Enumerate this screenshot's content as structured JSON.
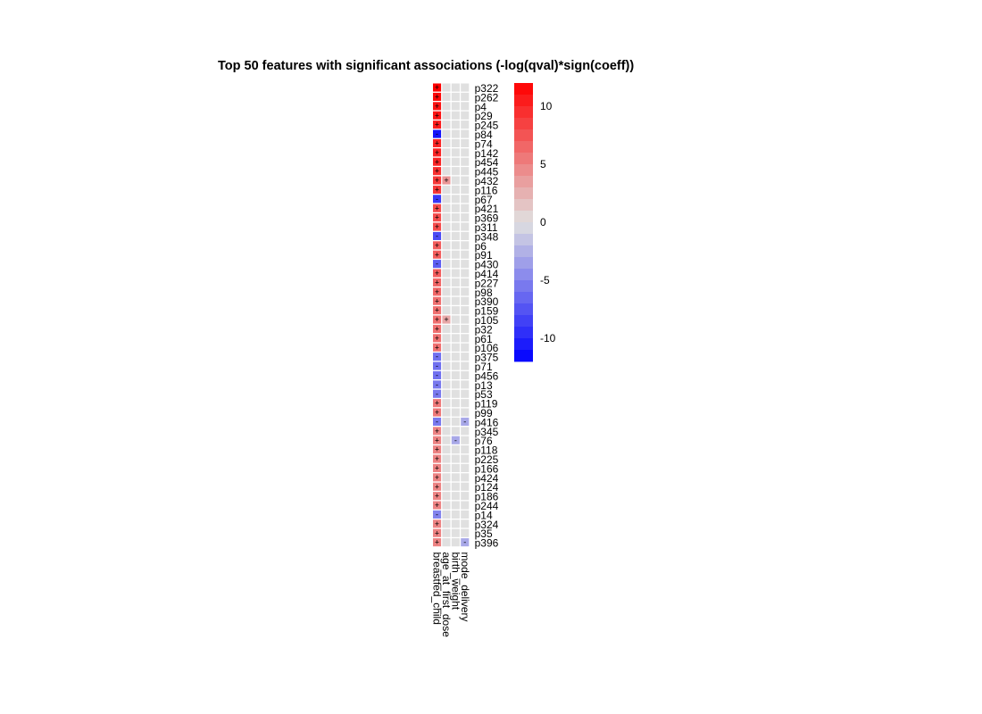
{
  "chart_data": {
    "type": "heatmap",
    "title": "Top 50 features with significant associations (-log(qval)*sign(coeff))",
    "columns": [
      "breastfed_child",
      "age_at_first_dose",
      "birth_weight",
      "mode_delivery"
    ],
    "rows": [
      "p322",
      "p262",
      "p4",
      "p29",
      "p245",
      "p84",
      "p74",
      "p142",
      "p454",
      "p445",
      "p432",
      "p116",
      "p67",
      "p421",
      "p369",
      "p311",
      "p348",
      "p6",
      "p91",
      "p430",
      "p414",
      "p227",
      "p98",
      "p390",
      "p159",
      "p105",
      "p32",
      "p61",
      "p106",
      "p375",
      "p71",
      "p456",
      "p13",
      "p53",
      "p119",
      "p99",
      "p416",
      "p345",
      "p76",
      "p118",
      "p225",
      "p166",
      "p424",
      "p124",
      "p186",
      "p244",
      "p14",
      "p324",
      "p35",
      "p396"
    ],
    "values": [
      [
        12,
        0,
        0,
        0
      ],
      [
        11.5,
        0,
        0,
        0
      ],
      [
        11,
        0,
        0,
        0
      ],
      [
        11,
        0,
        0,
        0
      ],
      [
        10.5,
        0,
        0,
        0
      ],
      [
        -11,
        0,
        0,
        0
      ],
      [
        10,
        0,
        0,
        0
      ],
      [
        10,
        0,
        0,
        0
      ],
      [
        10,
        0,
        0,
        0
      ],
      [
        9.5,
        0,
        0,
        0
      ],
      [
        9,
        4,
        0,
        0
      ],
      [
        9,
        0,
        0,
        0
      ],
      [
        -9,
        0,
        0,
        0
      ],
      [
        8,
        0,
        0,
        0
      ],
      [
        8,
        0,
        0,
        0
      ],
      [
        8,
        0,
        0,
        0
      ],
      [
        -8,
        0,
        0,
        0
      ],
      [
        7,
        0,
        0,
        0
      ],
      [
        7,
        0,
        0,
        0
      ],
      [
        -7,
        0,
        0,
        0
      ],
      [
        7,
        0,
        0,
        0
      ],
      [
        6.5,
        0,
        0,
        0
      ],
      [
        6.5,
        0,
        0,
        0
      ],
      [
        6,
        0,
        0,
        0
      ],
      [
        6,
        0,
        0,
        0
      ],
      [
        6,
        3,
        0,
        0
      ],
      [
        6,
        0,
        0,
        0
      ],
      [
        6,
        0,
        0,
        0
      ],
      [
        6,
        0,
        0,
        0
      ],
      [
        -6,
        0,
        0,
        0
      ],
      [
        -6,
        0,
        0,
        0
      ],
      [
        -6,
        0,
        0,
        0
      ],
      [
        -5.5,
        0,
        0,
        0
      ],
      [
        -5.5,
        0,
        0,
        0
      ],
      [
        5.5,
        0,
        0,
        0
      ],
      [
        5.5,
        0,
        0,
        0
      ],
      [
        -5.5,
        0,
        0,
        -3
      ],
      [
        5,
        0,
        0,
        0
      ],
      [
        5,
        0,
        -3,
        0
      ],
      [
        5,
        0,
        0,
        0
      ],
      [
        5,
        0,
        0,
        0
      ],
      [
        5,
        0,
        0,
        0
      ],
      [
        5,
        0,
        0,
        0
      ],
      [
        5,
        0,
        0,
        0
      ],
      [
        5,
        0,
        0,
        0
      ],
      [
        5,
        0,
        0,
        0
      ],
      [
        -5,
        0,
        0,
        0
      ],
      [
        5,
        0,
        0,
        0
      ],
      [
        5,
        0,
        0,
        0
      ],
      [
        5,
        0,
        0,
        -3
      ]
    ],
    "significance_marks": [
      [
        "+",
        "",
        "",
        ""
      ],
      [
        "+",
        "",
        "",
        ""
      ],
      [
        "+",
        "",
        "",
        ""
      ],
      [
        "+",
        "",
        "",
        ""
      ],
      [
        "+",
        "",
        "",
        ""
      ],
      [
        "-",
        "",
        "",
        ""
      ],
      [
        "+",
        "",
        "",
        ""
      ],
      [
        "+",
        "",
        "",
        ""
      ],
      [
        "+",
        "",
        "",
        ""
      ],
      [
        "+",
        "",
        "",
        ""
      ],
      [
        "+",
        "+",
        "",
        ""
      ],
      [
        "+",
        "",
        "",
        ""
      ],
      [
        "-",
        "",
        "",
        ""
      ],
      [
        "+",
        "",
        "",
        ""
      ],
      [
        "+",
        "",
        "",
        ""
      ],
      [
        "+",
        "",
        "",
        ""
      ],
      [
        "-",
        "",
        "",
        ""
      ],
      [
        "+",
        "",
        "",
        ""
      ],
      [
        "+",
        "",
        "",
        ""
      ],
      [
        "-",
        "",
        "",
        ""
      ],
      [
        "+",
        "",
        "",
        ""
      ],
      [
        "+",
        "",
        "",
        ""
      ],
      [
        "+",
        "",
        "",
        ""
      ],
      [
        "+",
        "",
        "",
        ""
      ],
      [
        "+",
        "",
        "",
        ""
      ],
      [
        "+",
        "+",
        "",
        ""
      ],
      [
        "+",
        "",
        "",
        ""
      ],
      [
        "+",
        "",
        "",
        ""
      ],
      [
        "+",
        "",
        "",
        ""
      ],
      [
        "-",
        "",
        "",
        ""
      ],
      [
        "-",
        "",
        "",
        ""
      ],
      [
        "-",
        "",
        "",
        ""
      ],
      [
        "-",
        "",
        "",
        ""
      ],
      [
        "-",
        "",
        "",
        ""
      ],
      [
        "+",
        "",
        "",
        ""
      ],
      [
        "+",
        "",
        "",
        ""
      ],
      [
        "-",
        "",
        "",
        "-"
      ],
      [
        "+",
        "",
        "",
        ""
      ],
      [
        "+",
        "",
        "-",
        ""
      ],
      [
        "+",
        "",
        "",
        ""
      ],
      [
        "+",
        "",
        "",
        ""
      ],
      [
        "+",
        "",
        "",
        ""
      ],
      [
        "+",
        "",
        "",
        ""
      ],
      [
        "+",
        "",
        "",
        ""
      ],
      [
        "+",
        "",
        "",
        ""
      ],
      [
        "+",
        "",
        "",
        ""
      ],
      [
        "-",
        "",
        "",
        ""
      ],
      [
        "+",
        "",
        "",
        ""
      ],
      [
        "+",
        "",
        "",
        ""
      ],
      [
        "+",
        "",
        "",
        "-"
      ]
    ],
    "color_scale": {
      "min": -12,
      "max": 12,
      "low_color": "#0000ff",
      "mid_color": "#e0e0e0",
      "high_color": "#ff0000",
      "ticks": [
        -10,
        -5,
        0,
        5,
        10
      ]
    },
    "legend_placement": "right",
    "grid": false
  }
}
